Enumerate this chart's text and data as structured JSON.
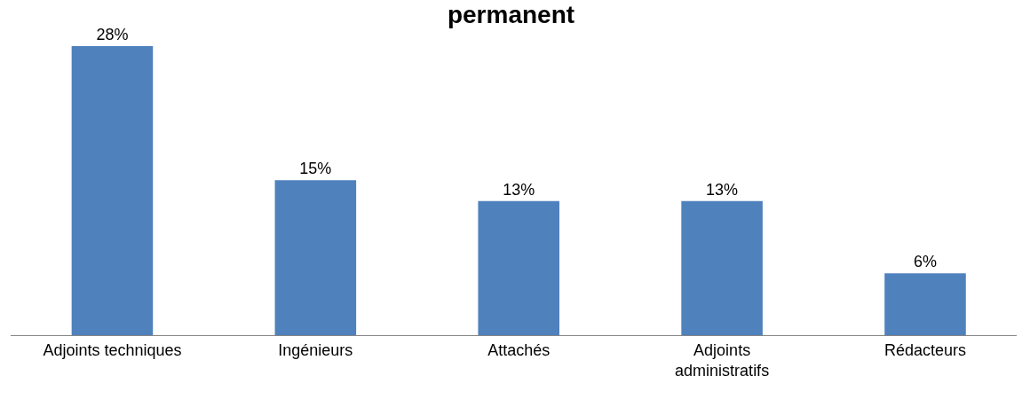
{
  "chart_data": {
    "type": "bar",
    "title": "permanent",
    "categories": [
      "Adjoints techniques",
      "Ingénieurs",
      "Attachés",
      "Adjoints administratifs",
      "Rédacteurs"
    ],
    "values": [
      28,
      15,
      13,
      13,
      6
    ],
    "value_labels": [
      "28%",
      "15%",
      "13%",
      "13%",
      "6%"
    ],
    "color": "#4f81bd"
  }
}
